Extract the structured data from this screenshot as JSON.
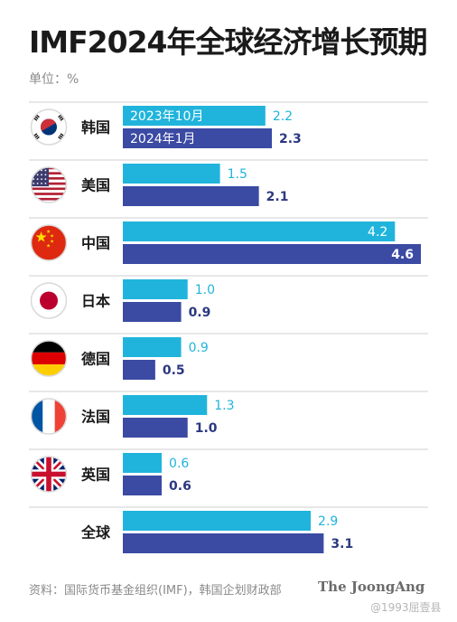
{
  "title": "IMF2024年全球经济增长预期",
  "unit_label": "单位：%",
  "source": "资料：国际货币基金组织(IMF)，韩国企划财政部",
  "brand": "The JoongAng",
  "watermark": "@1993屈壹县",
  "colors": {
    "series_oct": "#20b4dc",
    "series_jan": "#3b4aa3",
    "label_oct": "#20b4dc",
    "label_jan": "#2b3880",
    "divider": "#cfcfcf"
  },
  "chart_data": {
    "type": "bar",
    "orientation": "horizontal",
    "categories": [
      "韩国",
      "美国",
      "中国",
      "日本",
      "德国",
      "法国",
      "英国",
      "全球"
    ],
    "flags": [
      "south-korea-flag",
      "usa-flag",
      "china-flag",
      "japan-flag",
      "germany-flag",
      "france-flag",
      "uk-flag",
      null
    ],
    "series": [
      {
        "name": "2023年10月",
        "values": [
          2.2,
          1.5,
          4.2,
          1.0,
          0.9,
          1.3,
          0.6,
          2.9
        ],
        "labels": [
          "2.2",
          "1.5",
          "4.2",
          "1.0",
          "0.9",
          "1.3",
          "0.6",
          "2.9"
        ]
      },
      {
        "name": "2024年1月",
        "values": [
          2.3,
          2.1,
          4.6,
          0.9,
          0.5,
          1.0,
          0.6,
          3.1
        ],
        "labels": [
          "2.3",
          "2.1",
          "4.6",
          "0.9",
          "0.5",
          "1.0",
          "0.6",
          "3.1"
        ]
      }
    ],
    "legend_position": "inside-first-group",
    "xlim": [
      0,
      4.6
    ],
    "grid": false
  }
}
